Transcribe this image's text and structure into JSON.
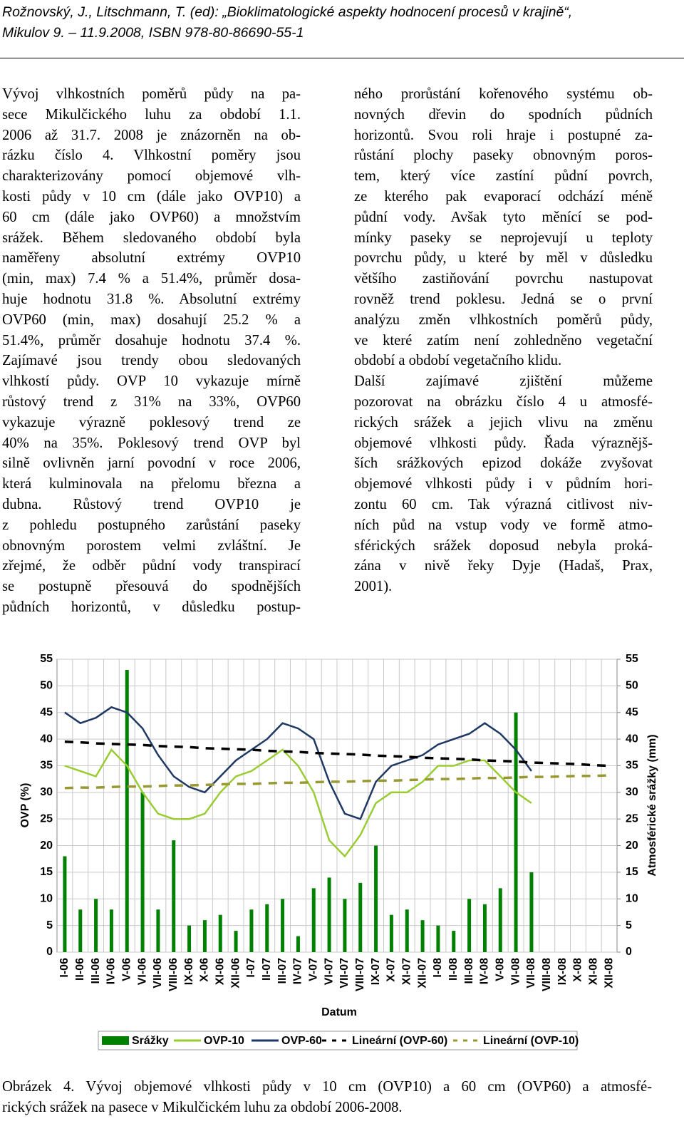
{
  "header": {
    "lines": [
      "Rožnovský, J., Litschmann, T. (ed): „Bioklimatologické aspekty hodnocení procesů v krajině“,",
      "Mikulov 9. – 11.9.2008, ISBN 978-80-86690-55-1"
    ]
  },
  "columns": [
    {
      "paragraphs": [
        [
          "Vývoj vlhkostních poměrů půdy na pa-",
          "sece Mikulčického luhu za období 1.1.",
          "2006 až 31.7. 2008 je znázorněn na ob-",
          "rázku číslo 4. Vlhkostní poměry jsou",
          "charakterizovány pomocí objemové vlh-",
          "kosti půdy v 10 cm (dále jako OVP10) a",
          "60 cm (dále jako OVP60) a množstvím",
          "srážek. Během sledovaného období byla",
          "naměřeny absolutní extrémy OVP10",
          "(min, max) 7.4 % a 51.4%, průměr dosa-",
          "huje hodnotu 31.8 %. Absolutní extrémy",
          "OVP60 (min, max) dosahují 25.2 % a",
          "51.4%, průměr dosahuje hodnotu 37.4 %.",
          "Zajímavé jsou trendy obou sledovaných",
          "vlhkostí půdy. OVP 10 vykazuje mírně",
          "růstový trend z 31% na 33%, OVP60",
          "vykazuje výrazně poklesový trend ze",
          "40% na 35%. Poklesový trend OVP byl",
          "silně ovlivněn jarní povodní v roce 2006,",
          "která kulminovala na přelomu března a",
          "dubna. Růstový trend OVP10 je",
          "z pohledu postupného zarůstání paseky",
          "obnovným porostem velmi zvláštní. Je",
          "zřejmé, že odběr půdní vody transpirací",
          "se postupně přesouvá do spodnějších",
          "půdních horizontů, v důsledku postup-"
        ]
      ]
    },
    {
      "paragraphs": [
        [
          "ného prorůstání kořenového systému ob-",
          "novných dřevin do spodních půdních",
          "horizontů. Svou roli hraje i postupné za-",
          "růstání plochy paseky obnovným poros-",
          "tem, který více zastíní půdní povrch,",
          "ze kterého pak evaporací odchází méně",
          "půdní vody. Avšak tyto měnící se pod-",
          "mínky paseky se neprojevují u teploty",
          "povrchu půdy, u které by měl v důsledku",
          "většího zastiňování povrchu nastupovat",
          "rovněž trend poklesu. Jedná se o první",
          "analýzu změn vlhkostních poměrů půdy,",
          "ve které zatím není zohledněno vegetační",
          "období a období vegetačního klidu."
        ],
        [
          "Další zajímavé zjištění můžeme",
          "pozorovat na obrázku číslo 4 u atmosfé-",
          "rických srážek a jejich vlivu na změnu",
          "objemové vlhkosti půdy. Řada výraznějš-",
          "ších srážkových epizod dokáže zvyšovat",
          "objemové vlhkosti půdy i v půdním hori-",
          "zontu 60 cm. Tak výrazná citlivost niv-",
          "ních půd na vstup vody ve formě atmo-",
          "sférických srážek doposud nebyla proká-",
          "zána v nivě řeky Dyje (Hadaš, Prax,",
          "2001)."
        ]
      ]
    }
  ],
  "chart_data": {
    "type": "line",
    "x_label": "Datum",
    "y_label": "OVP (%)",
    "y2_label": "Atmosférické srážky (mm)",
    "categories": [
      "I-06",
      "II-06",
      "III-06",
      "IV-06",
      "V-06",
      "VI-06",
      "VII-06",
      "VIII-06",
      "IX-06",
      "X-06",
      "XI-06",
      "XII-06",
      "I-07",
      "II-07",
      "III-07",
      "IV-07",
      "V-07",
      "VI-07",
      "VII-07",
      "VIII-07",
      "IX-07",
      "X-07",
      "XI-07",
      "XII-07",
      "I-08",
      "II-08",
      "III-08",
      "IV-08",
      "V-08",
      "VI-08",
      "VII-08",
      "VIII-08",
      "IX-08",
      "X-08",
      "XI-08",
      "XII-08"
    ],
    "ylim": [
      0,
      55
    ],
    "yticks": [
      0,
      5,
      10,
      15,
      20,
      25,
      30,
      35,
      40,
      45,
      50,
      55
    ],
    "y2lim": [
      0,
      55
    ],
    "y2ticks": [
      0,
      5,
      10,
      15,
      20,
      25,
      30,
      35,
      40,
      45,
      50,
      55
    ],
    "grid": true,
    "series": [
      {
        "name": "Srážky",
        "type": "bar",
        "axis": "y2",
        "color": "#008000",
        "values": [
          18,
          8,
          10,
          8,
          53,
          30,
          8,
          21,
          5,
          6,
          7,
          4,
          8,
          9,
          10,
          3,
          12,
          14,
          10,
          13,
          20,
          7,
          8,
          6,
          5,
          4,
          10,
          9,
          12,
          45,
          15,
          null,
          null,
          null,
          null,
          null
        ]
      },
      {
        "name": "OVP-10",
        "type": "line",
        "color": "#99cc33",
        "values": [
          35,
          34,
          33,
          38,
          35,
          30,
          26,
          25,
          25,
          26,
          30,
          33,
          34,
          36,
          38,
          35,
          30,
          21,
          18,
          22,
          28,
          30,
          30,
          32,
          35,
          35,
          36,
          36,
          33,
          30,
          28,
          null,
          null,
          null,
          null,
          null
        ]
      },
      {
        "name": "OVP-60",
        "type": "line",
        "color": "#1f3864",
        "values": [
          45,
          43,
          44,
          46,
          45,
          42,
          37,
          33,
          31,
          30,
          33,
          36,
          38,
          40,
          43,
          42,
          40,
          32,
          26,
          25,
          32,
          35,
          36,
          37,
          39,
          40,
          41,
          43,
          41,
          38,
          34,
          null,
          null,
          null,
          null,
          null
        ]
      },
      {
        "name": "Lineární (OVP-60)",
        "type": "line",
        "dashed": true,
        "color": "#000000",
        "values": [
          39.5,
          39.4,
          39.2,
          39.1,
          39.0,
          38.9,
          38.7,
          38.6,
          38.5,
          38.3,
          38.2,
          38.1,
          38.0,
          37.8,
          37.7,
          37.6,
          37.4,
          37.3,
          37.2,
          37.1,
          36.9,
          36.8,
          36.7,
          36.5,
          36.4,
          36.3,
          36.2,
          36.0,
          35.9,
          35.8,
          35.6,
          35.5,
          35.4,
          35.3,
          35.1,
          35.0
        ]
      },
      {
        "name": "Lineární (OVP-10)",
        "type": "line",
        "dashed": true,
        "color": "#999933",
        "values": [
          30.8,
          30.9,
          30.9,
          31.0,
          31.1,
          31.1,
          31.2,
          31.3,
          31.3,
          31.4,
          31.5,
          31.6,
          31.6,
          31.7,
          31.8,
          31.8,
          31.9,
          32.0,
          32.0,
          32.1,
          32.2,
          32.2,
          32.3,
          32.4,
          32.5,
          32.5,
          32.6,
          32.7,
          32.7,
          32.8,
          32.9,
          32.9,
          33.0,
          33.1,
          33.1,
          33.2
        ]
      }
    ]
  },
  "caption": {
    "lines": [
      "Obrázek 4. Vývoj objemové vlhkosti půdy v 10 cm (OVP10) a 60 cm (OVP60) a atmosfé-",
      "rických srážek na pasece v Mikulčickém luhu za období 2006-2008."
    ]
  }
}
